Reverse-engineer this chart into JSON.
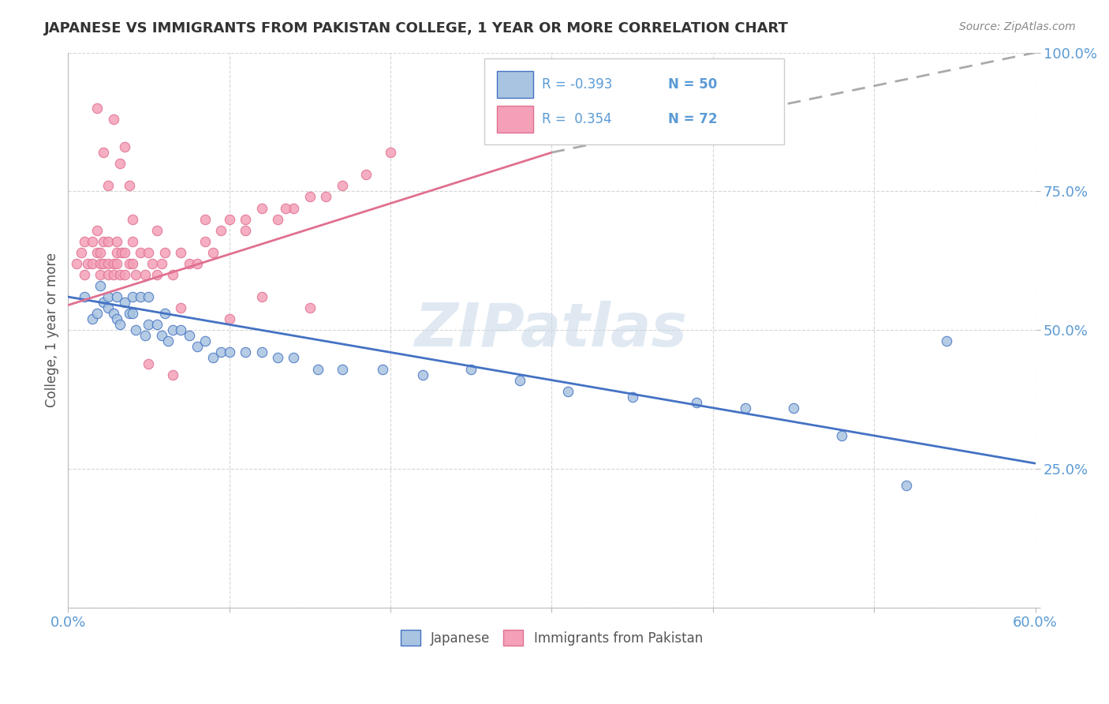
{
  "title": "JAPANESE VS IMMIGRANTS FROM PAKISTAN COLLEGE, 1 YEAR OR MORE CORRELATION CHART",
  "source_text": "Source: ZipAtlas.com",
  "ylabel": "College, 1 year or more",
  "xlim": [
    0.0,
    0.6
  ],
  "ylim": [
    0.0,
    1.0
  ],
  "xtick_positions": [
    0.0,
    0.1,
    0.2,
    0.3,
    0.4,
    0.5,
    0.6
  ],
  "xtick_labels": [
    "0.0%",
    "",
    "",
    "",
    "",
    "",
    "60.0%"
  ],
  "ytick_positions": [
    0.0,
    0.25,
    0.5,
    0.75,
    1.0
  ],
  "ytick_labels": [
    "",
    "25.0%",
    "50.0%",
    "75.0%",
    "100.0%"
  ],
  "legend_R1": "-0.393",
  "legend_N1": "50",
  "legend_R2": "0.354",
  "legend_N2": "72",
  "color_japanese": "#a8c4e0",
  "color_pakistan": "#f4a0b8",
  "color_line_japanese": "#4472c4",
  "color_line_pakistan": "#e07090",
  "color_axis_text": "#5b9bd5",
  "watermark_text": "ZIPatlas",
  "japanese_x": [
    0.01,
    0.015,
    0.018,
    0.02,
    0.022,
    0.025,
    0.025,
    0.028,
    0.03,
    0.03,
    0.032,
    0.035,
    0.038,
    0.04,
    0.04,
    0.042,
    0.045,
    0.048,
    0.05,
    0.05,
    0.055,
    0.058,
    0.06,
    0.062,
    0.065,
    0.07,
    0.075,
    0.08,
    0.085,
    0.09,
    0.095,
    0.1,
    0.11,
    0.12,
    0.13,
    0.14,
    0.155,
    0.17,
    0.195,
    0.22,
    0.25,
    0.28,
    0.31,
    0.35,
    0.39,
    0.42,
    0.45,
    0.48,
    0.52,
    0.545
  ],
  "japanese_y": [
    0.56,
    0.52,
    0.53,
    0.58,
    0.55,
    0.54,
    0.56,
    0.53,
    0.52,
    0.56,
    0.51,
    0.55,
    0.53,
    0.53,
    0.56,
    0.5,
    0.56,
    0.49,
    0.56,
    0.51,
    0.51,
    0.49,
    0.53,
    0.48,
    0.5,
    0.5,
    0.49,
    0.47,
    0.48,
    0.45,
    0.46,
    0.46,
    0.46,
    0.46,
    0.45,
    0.45,
    0.43,
    0.43,
    0.43,
    0.42,
    0.43,
    0.41,
    0.39,
    0.38,
    0.37,
    0.36,
    0.36,
    0.31,
    0.22,
    0.48
  ],
  "pakistan_x": [
    0.005,
    0.008,
    0.01,
    0.01,
    0.012,
    0.015,
    0.015,
    0.018,
    0.018,
    0.02,
    0.02,
    0.02,
    0.022,
    0.022,
    0.025,
    0.025,
    0.025,
    0.028,
    0.028,
    0.03,
    0.03,
    0.03,
    0.032,
    0.033,
    0.035,
    0.035,
    0.038,
    0.04,
    0.04,
    0.042,
    0.045,
    0.048,
    0.05,
    0.052,
    0.055,
    0.058,
    0.06,
    0.065,
    0.07,
    0.075,
    0.08,
    0.085,
    0.09,
    0.095,
    0.1,
    0.11,
    0.12,
    0.13,
    0.14,
    0.15,
    0.16,
    0.17,
    0.185,
    0.2,
    0.035,
    0.038,
    0.1,
    0.07,
    0.12,
    0.15,
    0.05,
    0.065,
    0.04,
    0.025,
    0.055,
    0.085,
    0.11,
    0.135,
    0.028,
    0.018,
    0.022,
    0.032
  ],
  "pakistan_y": [
    0.62,
    0.64,
    0.6,
    0.66,
    0.62,
    0.62,
    0.66,
    0.64,
    0.68,
    0.62,
    0.64,
    0.6,
    0.62,
    0.66,
    0.62,
    0.6,
    0.66,
    0.62,
    0.6,
    0.64,
    0.62,
    0.66,
    0.6,
    0.64,
    0.6,
    0.64,
    0.62,
    0.62,
    0.66,
    0.6,
    0.64,
    0.6,
    0.64,
    0.62,
    0.6,
    0.62,
    0.64,
    0.6,
    0.64,
    0.62,
    0.62,
    0.66,
    0.64,
    0.68,
    0.7,
    0.68,
    0.72,
    0.7,
    0.72,
    0.74,
    0.74,
    0.76,
    0.78,
    0.82,
    0.83,
    0.76,
    0.52,
    0.54,
    0.56,
    0.54,
    0.44,
    0.42,
    0.7,
    0.76,
    0.68,
    0.7,
    0.7,
    0.72,
    0.88,
    0.9,
    0.82,
    0.8
  ],
  "trend_jap_x0": 0.0,
  "trend_jap_y0": 0.56,
  "trend_jap_x1": 0.6,
  "trend_jap_y1": 0.26,
  "trend_pak_solid_x0": 0.0,
  "trend_pak_solid_y0": 0.545,
  "trend_pak_solid_x1": 0.3,
  "trend_pak_solid_y1": 0.82,
  "trend_pak_dash_x0": 0.3,
  "trend_pak_dash_y0": 0.82,
  "trend_pak_dash_x1": 0.6,
  "trend_pak_dash_y1": 1.0
}
